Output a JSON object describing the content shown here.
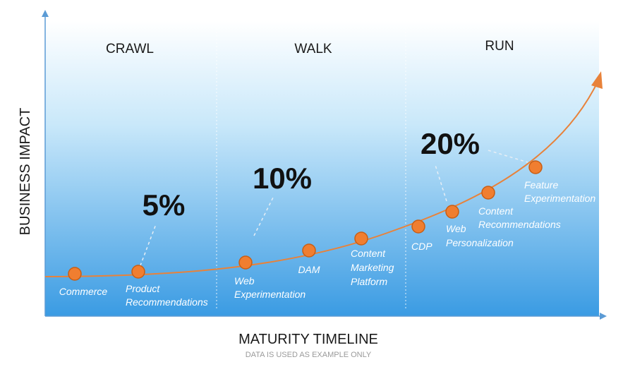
{
  "stages": [
    "CRAWL",
    "WALK",
    "RUN"
  ],
  "y_axis_title": "BUSINESS IMPACT",
  "x_axis_title": "MATURITY TIMELINE",
  "footnote": "DATA IS USED AS EXAMPLE ONLY",
  "percent_labels": [
    "5%",
    "10%",
    "20%"
  ],
  "nodes": [
    {
      "label": [
        "Commerce"
      ]
    },
    {
      "label": [
        "Product",
        "Recommendations"
      ]
    },
    {
      "label": [
        "Web",
        "Experimentation"
      ]
    },
    {
      "label": [
        "DAM"
      ]
    },
    {
      "label": [
        "Content",
        "Marketing",
        "Platform"
      ]
    },
    {
      "label": [
        "CDP"
      ]
    },
    {
      "label": [
        "Web",
        "Personalization"
      ]
    },
    {
      "label": [
        "Content",
        "Recommendations"
      ]
    },
    {
      "label": [
        "Feature",
        "Experimentation"
      ]
    }
  ],
  "colors": {
    "background_top": "#ffffff",
    "background_bottom": "#3a9be3",
    "curve": "#e8823a",
    "node_fill": "#f07e30",
    "node_stroke": "#c95e14",
    "axis": "#5b9bd5"
  }
}
